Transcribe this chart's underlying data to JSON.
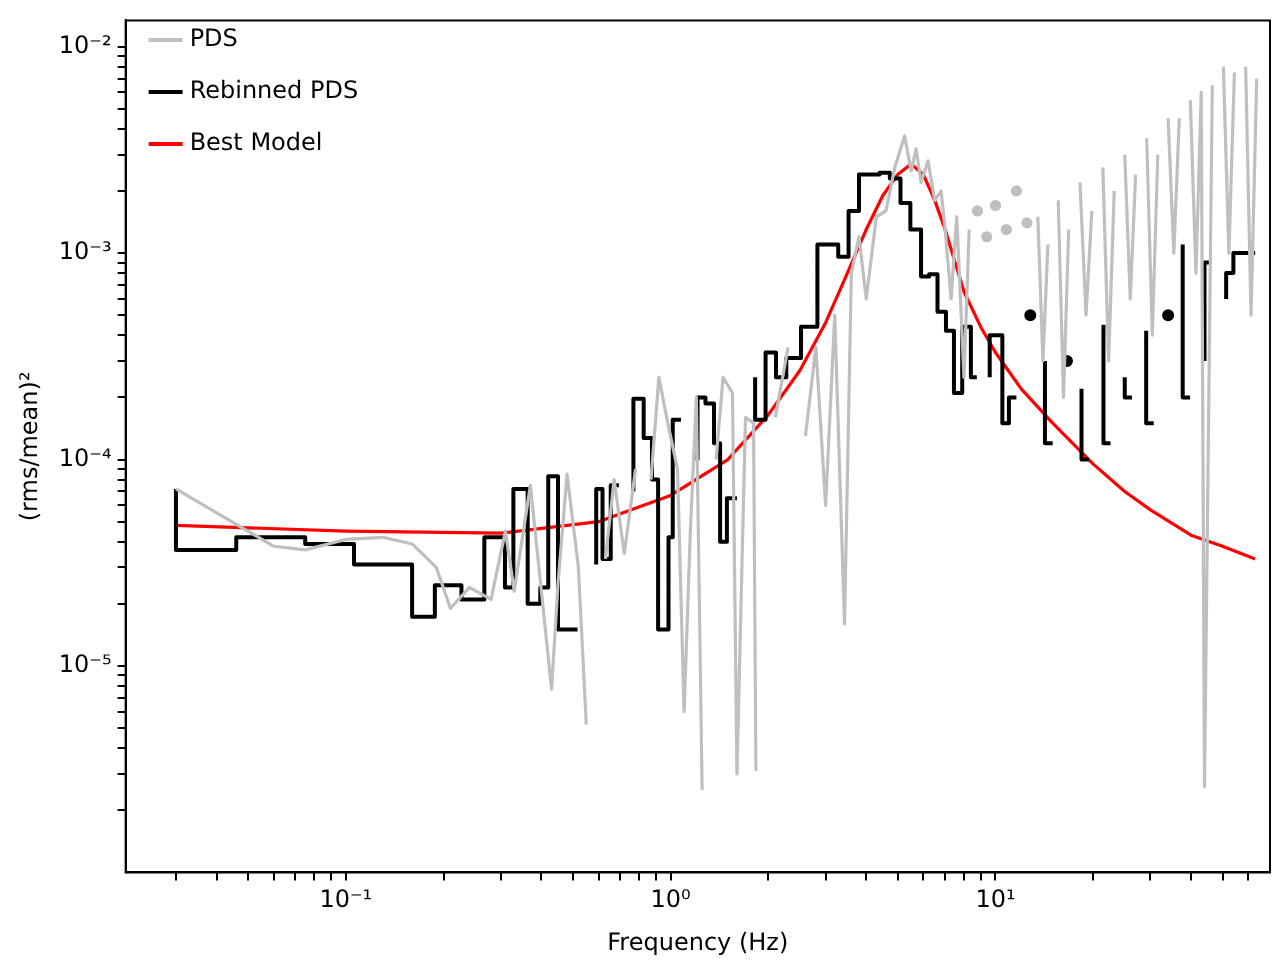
{
  "chart_data": {
    "type": "line",
    "xlabel": "Frequency (Hz)",
    "ylabel": "(rms/mean)²",
    "log": "xy",
    "grid": false,
    "legend": "top left",
    "xlim": [
      0.021,
      70
    ],
    "ylim": [
      1e-06,
      0.0134
    ],
    "xticks": [
      {
        "value": 0.03,
        "label": null
      },
      {
        "value": 0.04,
        "label": null
      },
      {
        "value": 0.05,
        "label": null
      },
      {
        "value": 0.06,
        "label": null
      },
      {
        "value": 0.07,
        "label": null
      },
      {
        "value": 0.08,
        "label": null
      },
      {
        "value": 0.09,
        "label": null
      },
      {
        "value": 0.1,
        "label": "10⁻¹"
      },
      {
        "value": 0.2,
        "label": null
      },
      {
        "value": 0.3,
        "label": null
      },
      {
        "value": 0.4,
        "label": null
      },
      {
        "value": 0.5,
        "label": null
      },
      {
        "value": 0.6,
        "label": null
      },
      {
        "value": 0.7,
        "label": null
      },
      {
        "value": 0.8,
        "label": null
      },
      {
        "value": 0.9,
        "label": null
      },
      {
        "value": 1,
        "label": "10⁰"
      },
      {
        "value": 2,
        "label": null
      },
      {
        "value": 3,
        "label": null
      },
      {
        "value": 4,
        "label": null
      },
      {
        "value": 5,
        "label": null
      },
      {
        "value": 6,
        "label": null
      },
      {
        "value": 7,
        "label": null
      },
      {
        "value": 8,
        "label": null
      },
      {
        "value": 9,
        "label": null
      },
      {
        "value": 10,
        "label": "10¹"
      },
      {
        "value": 20,
        "label": null
      },
      {
        "value": 30,
        "label": null
      },
      {
        "value": 40,
        "label": null
      },
      {
        "value": 50,
        "label": null
      },
      {
        "value": 60,
        "label": null
      }
    ],
    "yticks": [
      {
        "value": 2e-06,
        "label": null
      },
      {
        "value": 3e-06,
        "label": null
      },
      {
        "value": 4e-06,
        "label": null
      },
      {
        "value": 5e-06,
        "label": null
      },
      {
        "value": 6e-06,
        "label": null
      },
      {
        "value": 7e-06,
        "label": null
      },
      {
        "value": 8e-06,
        "label": null
      },
      {
        "value": 9e-06,
        "label": null
      },
      {
        "value": 1e-05,
        "label": "10⁻⁵"
      },
      {
        "value": 2e-05,
        "label": null
      },
      {
        "value": 3e-05,
        "label": null
      },
      {
        "value": 4e-05,
        "label": null
      },
      {
        "value": 5e-05,
        "label": null
      },
      {
        "value": 6e-05,
        "label": null
      },
      {
        "value": 7e-05,
        "label": null
      },
      {
        "value": 8e-05,
        "label": null
      },
      {
        "value": 9e-05,
        "label": null
      },
      {
        "value": 0.0001,
        "label": "10⁻⁴"
      },
      {
        "value": 0.0002,
        "label": null
      },
      {
        "value": 0.0003,
        "label": null
      },
      {
        "value": 0.0004,
        "label": null
      },
      {
        "value": 0.0005,
        "label": null
      },
      {
        "value": 0.0006,
        "label": null
      },
      {
        "value": 0.0007,
        "label": null
      },
      {
        "value": 0.0008,
        "label": null
      },
      {
        "value": 0.0009,
        "label": null
      },
      {
        "value": 0.001,
        "label": "10⁻³"
      },
      {
        "value": 0.002,
        "label": null
      },
      {
        "value": 0.003,
        "label": null
      },
      {
        "value": 0.004,
        "label": null
      },
      {
        "value": 0.005,
        "label": null
      },
      {
        "value": 0.006,
        "label": null
      },
      {
        "value": 0.007,
        "label": null
      },
      {
        "value": 0.008,
        "label": null
      },
      {
        "value": 0.009,
        "label": null
      },
      {
        "value": 0.01,
        "label": "10⁻²"
      }
    ],
    "series": [
      {
        "name": "PDS",
        "type": "line",
        "color": "#bfbfbf",
        "x": [
          0.03,
          0.06,
          0.075,
          0.1,
          0.13,
          0.16,
          0.19,
          0.21,
          0.24,
          0.28,
          0.31,
          0.33,
          0.37,
          0.43,
          0.45,
          0.48,
          0.5,
          0.52,
          0.55,
          0.57,
          0.6,
          0.63,
          0.67,
          0.72,
          0.78,
          0.82,
          0.87,
          0.92,
          0.98,
          1.05,
          1.1,
          1.15,
          1.2,
          1.25,
          1.3,
          1.38,
          1.45,
          1.55,
          1.6,
          1.7,
          1.8,
          1.83,
          2.0,
          2.1,
          2.3,
          2.45,
          2.6,
          2.8,
          3.0,
          3.2,
          3.43,
          3.6,
          3.8,
          4.0,
          4.3,
          4.6,
          4.9,
          5.25,
          5.5,
          5.7,
          5.9,
          6.2,
          6.5,
          6.8,
          7.0,
          7.3,
          7.6,
          8.0,
          8.3,
          8.6,
          8.8,
          9.1,
          9.4,
          9.7,
          10,
          10.4,
          10.8,
          11.2,
          11.6,
          12,
          12.5,
          13,
          13.5,
          14,
          14.5,
          15,
          15.6,
          16.2,
          16.8,
          17.5,
          18.2,
          19,
          19.8,
          20.6,
          21.4,
          22.3,
          23.2,
          24.1,
          25,
          26,
          27,
          28,
          29.2,
          30.4,
          31.6,
          32.8,
          34,
          35.4,
          36.8,
          38.3,
          39.8,
          41.4,
          43,
          44,
          46.5,
          48.4,
          50.3,
          52.3,
          54.4,
          56.6,
          58.9,
          61.2,
          63.7
        ],
        "values": [
          7.2e-05,
          3.8e-05,
          3.65e-05,
          4.1e-05,
          4.2e-05,
          3.9e-05,
          3e-05,
          1.9e-05,
          2.4e-05,
          2.1e-05,
          4.5e-05,
          2.3e-05,
          7.5e-05,
          7.7e-06,
          2.5e-05,
          8.5e-05,
          5e-05,
          3e-05,
          5.2e-06,
          null,
          null,
          3.3e-05,
          8e-05,
          3.5e-05,
          9e-05,
          null,
          8e-05,
          0.00025,
          0.00015,
          9e-05,
          6e-06,
          4.5e-05,
          0.0002,
          2.5e-06,
          null,
          0.0001,
          0.00025,
          0.00021,
          3e-06,
          0.00016,
          0.00015,
          3.1e-06,
          null,
          0.00016,
          0.00035,
          null,
          0.00013,
          0.00035,
          6e-05,
          0.0005,
          1.6e-05,
          0.0008,
          0.0012,
          0.0006,
          0.0015,
          0.0016,
          0.0026,
          0.0037,
          0.0025,
          0.0032,
          0.0022,
          0.0028,
          0.0018,
          0.002,
          0.0013,
          0.0006,
          0.0015,
          0.00025,
          0.0013,
          null,
          0.0016,
          null,
          0.0012,
          null,
          0.0017,
          null,
          0.0013,
          null,
          0.002,
          null,
          0.0014,
          null,
          0.0015,
          0.0003,
          0.0011,
          null,
          0.0018,
          0.0002,
          0.0013,
          null,
          0.0022,
          0.0005,
          0.0016,
          null,
          0.0026,
          0.0003,
          0.002,
          null,
          0.003,
          0.0006,
          0.0024,
          null,
          0.0036,
          0.0004,
          0.003,
          null,
          0.0045,
          0.001,
          0.0045,
          null,
          0.0055,
          0.0008,
          0.006,
          2.6e-06,
          0.0065,
          null,
          0.008,
          0.001,
          0.0075,
          null,
          0.008,
          0.0005,
          0.007
        ]
      },
      {
        "name": "Rebinned PDS",
        "type": "step",
        "color": "#000000",
        "x": [
          0.03,
          0.046,
          0.075,
          0.106,
          0.16,
          0.188,
          0.227,
          0.267,
          0.309,
          0.328,
          0.363,
          0.397,
          0.42,
          0.45,
          0.517,
          0.54,
          0.59,
          0.617,
          0.654,
          0.693,
          0.735,
          0.768,
          0.826,
          0.876,
          0.915,
          0.985,
          1.015,
          1.076,
          1.12,
          1.21,
          1.28,
          1.36,
          1.42,
          1.49,
          1.6,
          1.67,
          1.82,
          1.96,
          2.11,
          2.27,
          2.52,
          2.83,
          3.05,
          3.28,
          3.53,
          3.8,
          4.4,
          4.73,
          5.1,
          5.47,
          5.9,
          6.25,
          6.63,
          7.04,
          7.45,
          7.9,
          8.4,
          8.76,
          9.15,
          9.6,
          10.5,
          11,
          11.6,
          12.2,
          12.8,
          13.5,
          14.2,
          15,
          15.8,
          16.6,
          17.5,
          18.4,
          19.4,
          20.4,
          21.5,
          22.6,
          23.8,
          25,
          26.3,
          27.7,
          29.1,
          30.7,
          32.3,
          34,
          35.8,
          37.7,
          39.7,
          41.8,
          44,
          46.3,
          48.7,
          51.3,
          54,
          56.8,
          59.8,
          63
        ],
        "values": [
          7.2e-05,
          3.65e-05,
          4.2e-05,
          3.9e-05,
          3.1e-05,
          1.73e-05,
          2.46e-05,
          2.1e-05,
          4.2e-05,
          2.4e-05,
          7.2e-05,
          2e-05,
          2.4e-05,
          8.3e-05,
          1.5e-05,
          null,
          3.1e-05,
          7.2e-05,
          3.3e-05,
          7.5e-05,
          null,
          7e-05,
          0.000197,
          0.000127,
          8e-05,
          1.5e-05,
          4.2e-05,
          0.000156,
          null,
          9.9e-05,
          0.0002,
          0.000187,
          0.00012,
          4e-05,
          6.5e-05,
          null,
          0.00025,
          0.000156,
          0.00033,
          0.00025,
          0.00031,
          0.00044,
          0.0011,
          0.0011,
          0.00096,
          0.0016,
          0.0024,
          0.00245,
          0.0023,
          0.00175,
          0.0013,
          0.00077,
          0.00079,
          0.00052,
          0.00042,
          0.00021,
          0.00044,
          0.00025,
          null,
          0.00025,
          0.0004,
          0.00015,
          0.0002,
          null,
          0.0005,
          null,
          0.0003,
          0.00012,
          null,
          0.0003,
          null,
          0.00022,
          0.0001,
          null,
          0.00045,
          0.00012,
          null,
          0.00025,
          0.0002,
          null,
          0.00042,
          0.00015,
          null,
          0.0005,
          null,
          0.0011,
          0.0002,
          null,
          0.0003,
          0.0009,
          null,
          0.0006,
          0.0008,
          0.001,
          0.001,
          0.001
        ]
      },
      {
        "name": "Best Model",
        "type": "line",
        "color": "#ff0000",
        "x": [
          0.03,
          0.1,
          0.3,
          0.6,
          1,
          1.5,
          2,
          2.5,
          3,
          3.5,
          4,
          4.5,
          5,
          5.5,
          6,
          6.5,
          7,
          8,
          9,
          10,
          12,
          15,
          20,
          25,
          30,
          40,
          50,
          63
        ],
        "values": [
          4.8e-05,
          4.5e-05,
          4.4e-05,
          5e-05,
          6.7e-05,
          0.0001,
          0.000165,
          0.00027,
          0.00046,
          0.0008,
          0.0013,
          0.0019,
          0.0024,
          0.0027,
          0.0024,
          0.0018,
          0.0013,
          0.00065,
          0.00044,
          0.00033,
          0.00022,
          0.00015,
          9.5e-05,
          7e-05,
          5.7e-05,
          4.3e-05,
          3.8e-05,
          3.3e-05
        ]
      }
    ]
  }
}
